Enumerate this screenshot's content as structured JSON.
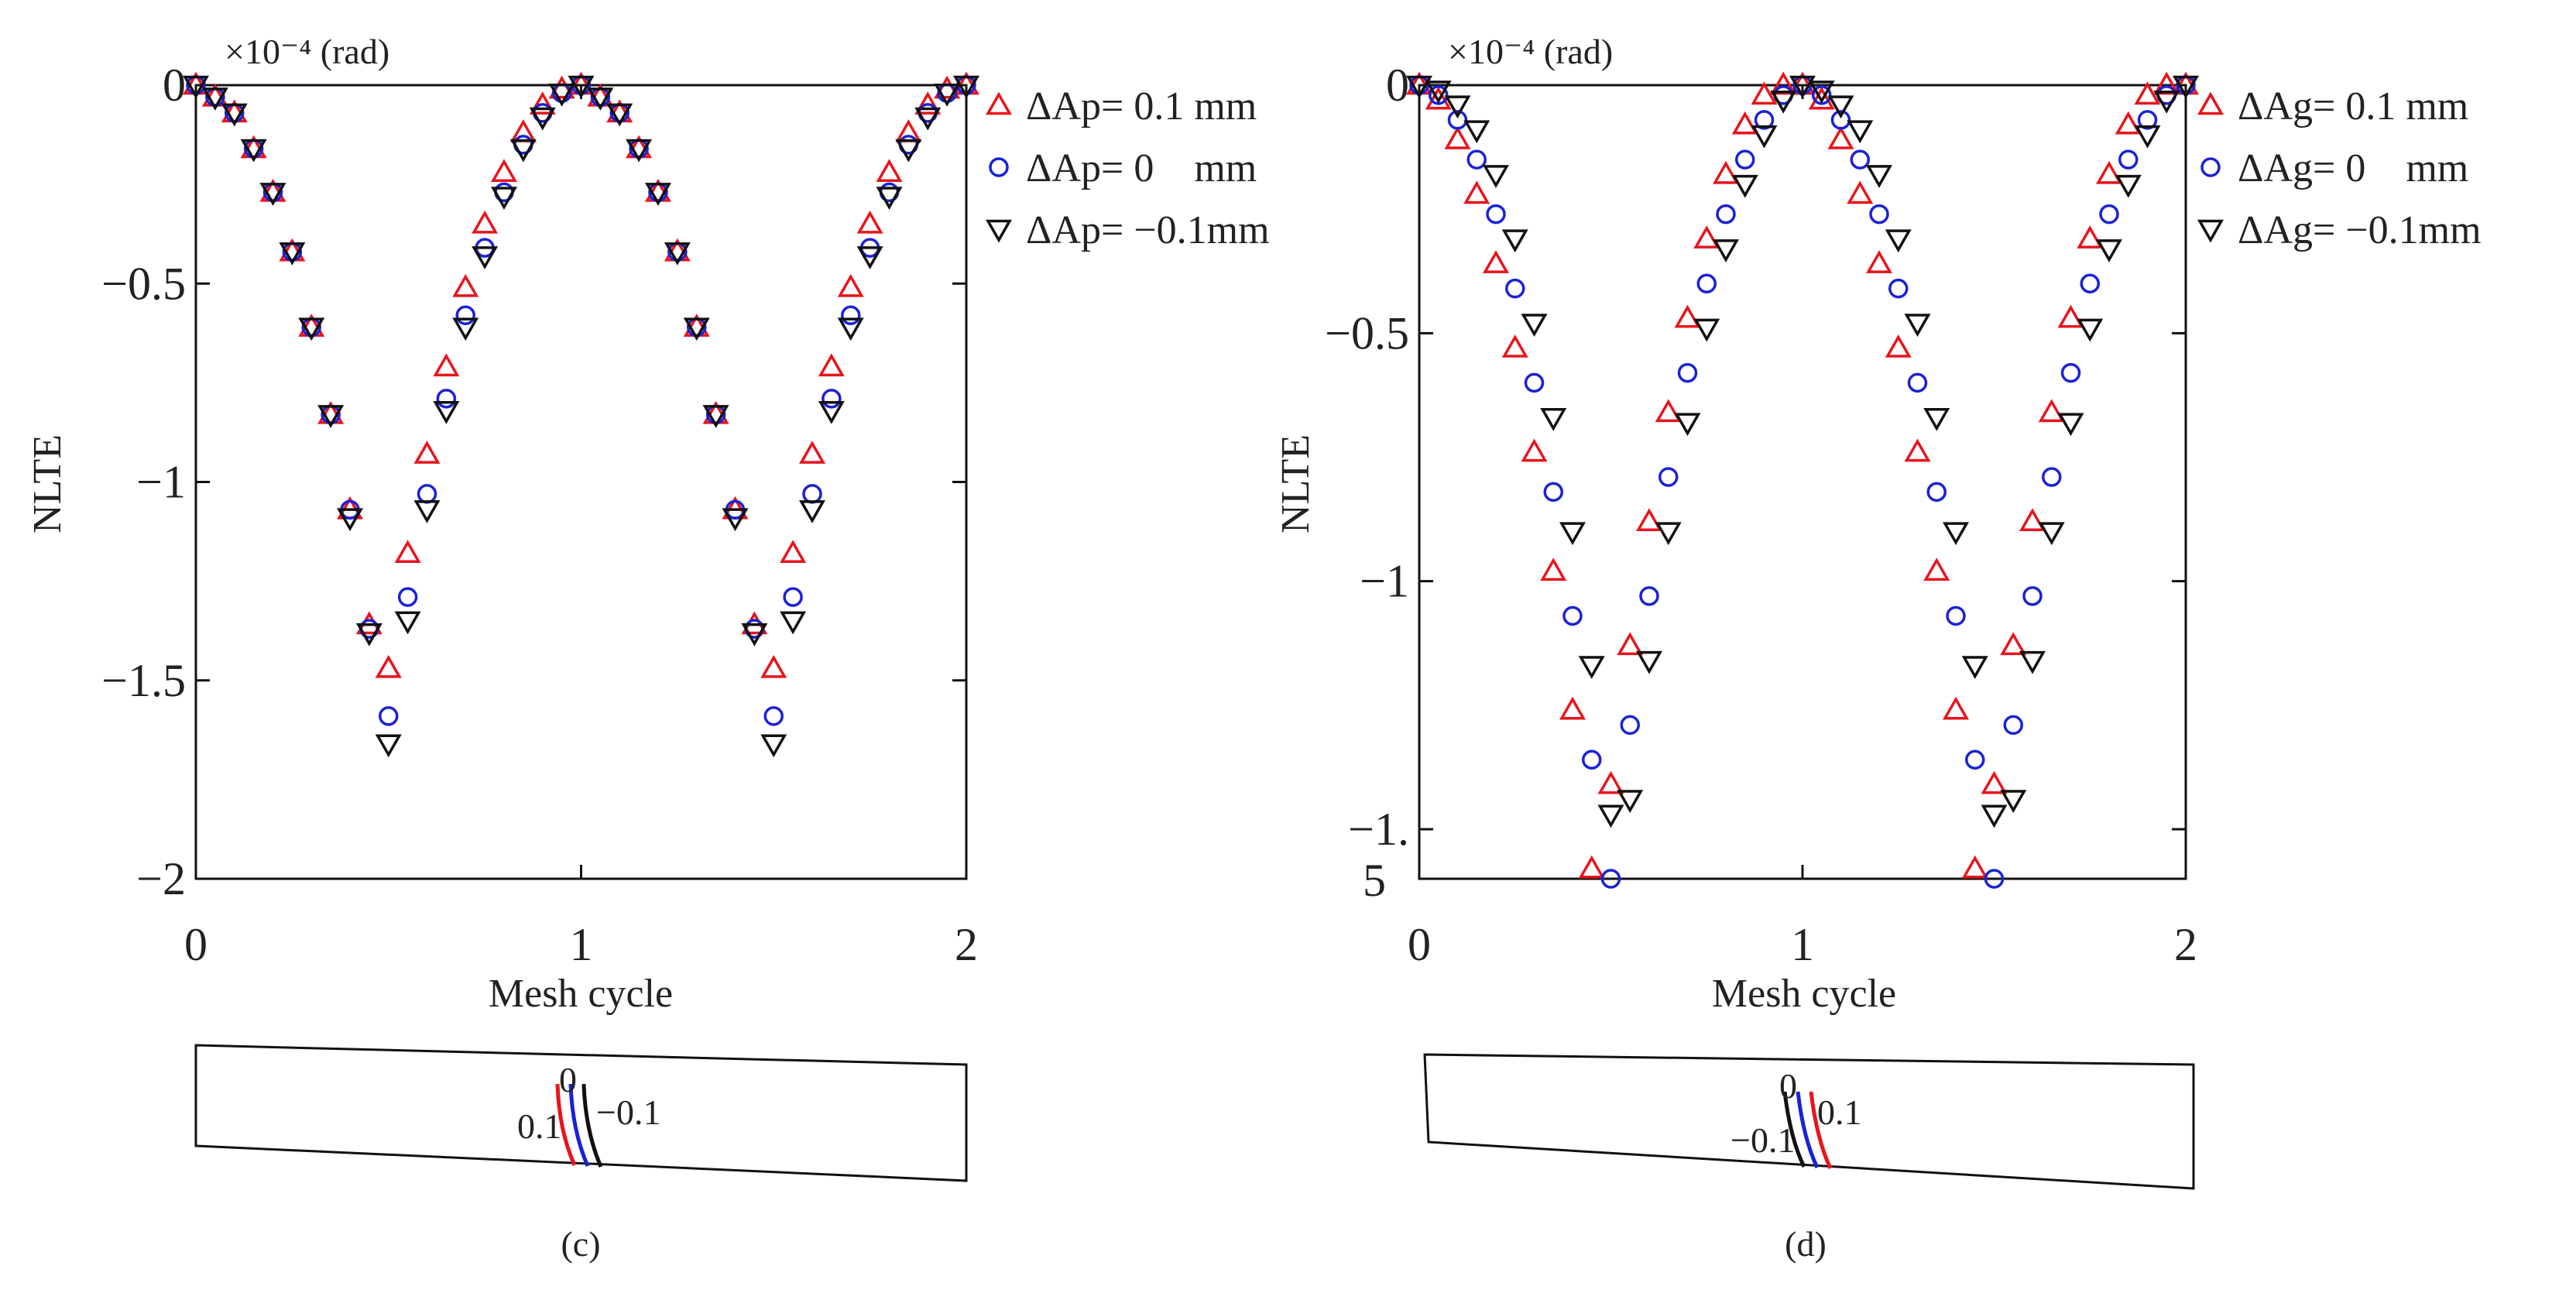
{
  "chart_data": [
    {
      "type": "scatter",
      "panel_label": "(c)",
      "title": "",
      "scale_label": "×10⁻⁴ (rad)",
      "xlabel": "Mesh cycle",
      "ylabel": "NLTE",
      "xlim": [
        0,
        2
      ],
      "ylim": [
        -2,
        0
      ],
      "xticks": [
        0,
        1,
        2
      ],
      "xtick_labels": [
        "0",
        "1",
        "2"
      ],
      "yticks": [
        0,
        -0.5,
        -1,
        -1.5,
        -2
      ],
      "ytick_labels": [
        "0",
        "−0.5",
        "−1",
        "−1.5",
        "−2"
      ],
      "x": [
        0.0,
        0.05,
        0.1,
        0.15,
        0.2,
        0.25,
        0.3,
        0.35,
        0.4,
        0.45,
        0.5,
        0.55,
        0.6,
        0.65,
        0.7,
        0.75,
        0.8,
        0.85,
        0.9,
        0.95,
        1.0,
        1.05,
        1.1,
        1.15,
        1.2,
        1.25,
        1.3,
        1.35,
        1.4,
        1.45,
        1.5,
        1.55,
        1.6,
        1.65,
        1.7,
        1.75,
        1.8,
        1.85,
        1.9,
        1.95,
        2.0
      ],
      "series": [
        {
          "name": "ΔAp= 0.1 mm",
          "legend_label": "ΔAp= 0.1 mm",
          "marker": "triangle-up",
          "color": "#e8141c",
          "values": [
            0,
            -0.03,
            -0.07,
            -0.16,
            -0.27,
            -0.42,
            -0.61,
            -0.83,
            -1.07,
            -1.36,
            -1.47,
            -1.18,
            -0.93,
            -0.71,
            -0.51,
            -0.35,
            -0.22,
            -0.12,
            -0.05,
            -0.01,
            0,
            -0.03,
            -0.07,
            -0.16,
            -0.27,
            -0.42,
            -0.61,
            -0.83,
            -1.07,
            -1.36,
            -1.47,
            -1.18,
            -0.93,
            -0.71,
            -0.51,
            -0.35,
            -0.22,
            -0.12,
            -0.05,
            -0.01,
            0
          ]
        },
        {
          "name": "ΔAp= 0 mm",
          "legend_label": "ΔAp= 0    mm",
          "marker": "circle",
          "color": "#1a22d6",
          "values": [
            0,
            -0.03,
            -0.07,
            -0.16,
            -0.27,
            -0.42,
            -0.61,
            -0.83,
            -1.07,
            -1.37,
            -1.59,
            -1.29,
            -1.03,
            -0.79,
            -0.58,
            -0.41,
            -0.27,
            -0.15,
            -0.07,
            -0.02,
            0,
            -0.03,
            -0.07,
            -0.16,
            -0.27,
            -0.42,
            -0.61,
            -0.83,
            -1.07,
            -1.37,
            -1.59,
            -1.29,
            -1.03,
            -0.79,
            -0.58,
            -0.41,
            -0.27,
            -0.15,
            -0.07,
            -0.02,
            0
          ]
        },
        {
          "name": "ΔAp= −0.1mm",
          "legend_label": "ΔAp= −0.1mm",
          "marker": "triangle-down",
          "color": "#111111",
          "values": [
            0,
            -0.03,
            -0.07,
            -0.16,
            -0.27,
            -0.42,
            -0.61,
            -0.83,
            -1.09,
            -1.38,
            -1.66,
            -1.35,
            -1.07,
            -0.82,
            -0.61,
            -0.43,
            -0.28,
            -0.16,
            -0.08,
            -0.02,
            0,
            -0.03,
            -0.07,
            -0.16,
            -0.27,
            -0.42,
            -0.61,
            -0.83,
            -1.09,
            -1.38,
            -1.66,
            -1.35,
            -1.07,
            -0.82,
            -0.61,
            -0.43,
            -0.28,
            -0.16,
            -0.08,
            -0.02,
            0
          ]
        }
      ],
      "inset": {
        "labels": [
          "0",
          "0.1",
          "−0.1"
        ],
        "left_label": "0.1",
        "right_label": "−0.1",
        "top_label": "0"
      }
    },
    {
      "type": "scatter",
      "panel_label": "(d)",
      "title": "",
      "scale_label": "×10⁻⁴ (rad)",
      "xlabel": "Mesh cycle",
      "ylabel": "NLTE",
      "xlim": [
        0,
        2
      ],
      "ylim": [
        -1.6,
        0
      ],
      "xticks": [
        0,
        1,
        2
      ],
      "xtick_labels": [
        "0",
        "1",
        "2"
      ],
      "yticks": [
        0,
        -0.5,
        -1,
        -1.5
      ],
      "ytick_labels": [
        "0",
        "−0.5",
        "−1",
        "−1."
      ],
      "bottom_tick_label": "5",
      "x": [
        0.0,
        0.05,
        0.1,
        0.15,
        0.2,
        0.25,
        0.3,
        0.35,
        0.4,
        0.45,
        0.5,
        0.55,
        0.6,
        0.65,
        0.7,
        0.75,
        0.8,
        0.85,
        0.9,
        0.95,
        1.0,
        1.05,
        1.1,
        1.15,
        1.2,
        1.25,
        1.3,
        1.35,
        1.4,
        1.45,
        1.5,
        1.55,
        1.6,
        1.65,
        1.7,
        1.75,
        1.8,
        1.85,
        1.9,
        1.95,
        2.0
      ],
      "series": [
        {
          "name": "ΔAg= 0.1 mm",
          "legend_label": "ΔAg= 0.1 mm",
          "marker": "triangle-up",
          "color": "#e8141c",
          "values": [
            0,
            -0.03,
            -0.11,
            -0.22,
            -0.36,
            -0.53,
            -0.74,
            -0.98,
            -1.26,
            -1.58,
            -1.41,
            -1.13,
            -0.88,
            -0.66,
            -0.47,
            -0.31,
            -0.18,
            -0.08,
            -0.02,
            0,
            0,
            -0.03,
            -0.11,
            -0.22,
            -0.36,
            -0.53,
            -0.74,
            -0.98,
            -1.26,
            -1.58,
            -1.41,
            -1.13,
            -0.88,
            -0.66,
            -0.47,
            -0.31,
            -0.18,
            -0.08,
            -0.02,
            0,
            0
          ]
        },
        {
          "name": "ΔAg= 0 mm",
          "legend_label": "ΔAg= 0    mm",
          "marker": "circle",
          "color": "#1a22d6",
          "values": [
            0,
            -0.02,
            -0.07,
            -0.15,
            -0.26,
            -0.41,
            -0.6,
            -0.82,
            -1.07,
            -1.36,
            -1.6,
            -1.29,
            -1.03,
            -0.79,
            -0.58,
            -0.4,
            -0.26,
            -0.15,
            -0.07,
            -0.02,
            0,
            -0.02,
            -0.07,
            -0.15,
            -0.26,
            -0.41,
            -0.6,
            -0.82,
            -1.07,
            -1.36,
            -1.6,
            -1.29,
            -1.03,
            -0.79,
            -0.58,
            -0.4,
            -0.26,
            -0.15,
            -0.07,
            -0.02,
            0
          ]
        },
        {
          "name": "ΔAg= −0.1mm",
          "legend_label": "ΔAg= −0.1mm",
          "marker": "triangle-down",
          "color": "#111111",
          "values": [
            0,
            -0.01,
            -0.04,
            -0.09,
            -0.18,
            -0.31,
            -0.48,
            -0.67,
            -0.9,
            -1.17,
            -1.47,
            -1.44,
            -1.16,
            -0.9,
            -0.68,
            -0.49,
            -0.33,
            -0.2,
            -0.1,
            -0.03,
            0,
            -0.01,
            -0.04,
            -0.09,
            -0.18,
            -0.31,
            -0.48,
            -0.67,
            -0.9,
            -1.17,
            -1.47,
            -1.44,
            -1.16,
            -0.9,
            -0.68,
            -0.49,
            -0.33,
            -0.2,
            -0.1,
            -0.03,
            0
          ]
        }
      ],
      "inset": {
        "labels": [
          "0",
          "−0.1",
          "0.1"
        ],
        "left_label": "−0.1",
        "right_label": "0.1",
        "top_label": "0"
      }
    }
  ]
}
